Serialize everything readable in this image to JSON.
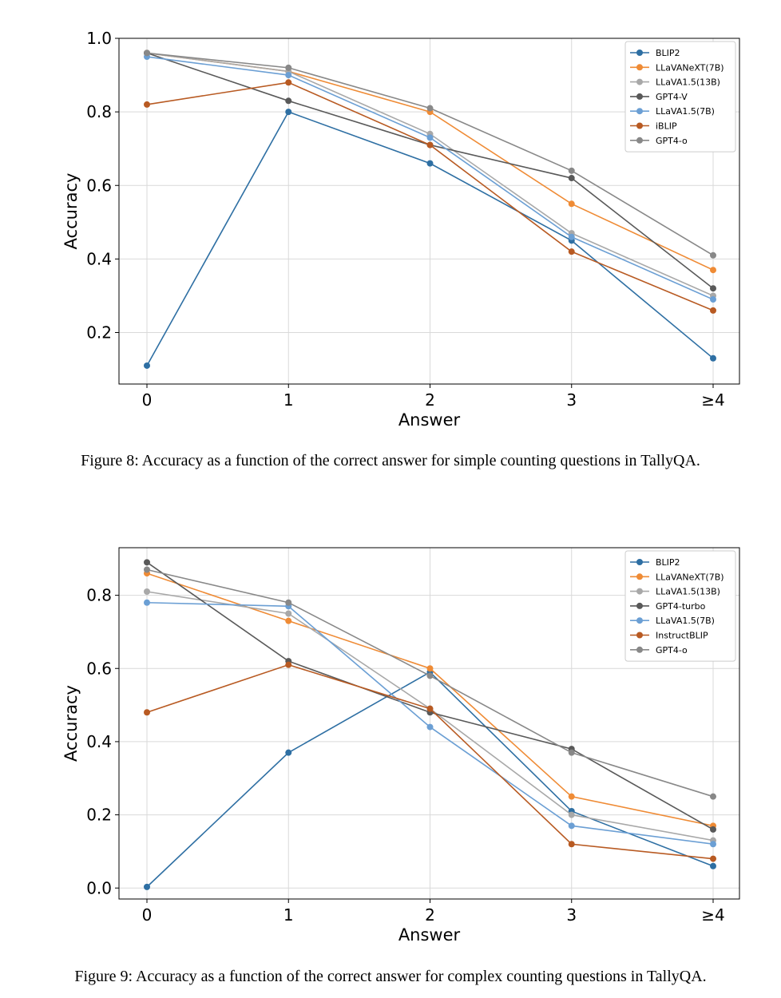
{
  "figures": [
    {
      "caption": "Figure 8: Accuracy as a function of the correct answer for simple counting questions in TallyQA.",
      "chart_data": {
        "type": "line",
        "title": "",
        "xlabel": "Answer",
        "ylabel": "Accuracy",
        "categories": [
          "0",
          "1",
          "2",
          "3",
          "≥4"
        ],
        "ylim": [
          0.06,
          1.0
        ],
        "yticks": [
          "0.2",
          "0.4",
          "0.6",
          "0.8",
          "1.0"
        ],
        "ytick_values": [
          0.2,
          0.4,
          0.6,
          0.8,
          1.0
        ],
        "grid": true,
        "legend": "top-right",
        "series": [
          {
            "name": "BLIP2",
            "color": "#2e6fa3",
            "values": [
              0.11,
              0.8,
              0.66,
              0.45,
              0.13
            ]
          },
          {
            "name": "LLaVANeXT(7B)",
            "color": "#ef8b35",
            "values": [
              0.96,
              0.91,
              0.8,
              0.55,
              0.37
            ]
          },
          {
            "name": "LLaVA1.5(13B)",
            "color": "#a8a8a8",
            "values": [
              0.96,
              0.91,
              0.74,
              0.47,
              0.3
            ]
          },
          {
            "name": "GPT4-V",
            "color": "#595959",
            "values": [
              0.96,
              0.83,
              0.71,
              0.62,
              0.32
            ]
          },
          {
            "name": "LLaVA1.5(7B)",
            "color": "#6b9fd4",
            "values": [
              0.95,
              0.9,
              0.73,
              0.46,
              0.29
            ]
          },
          {
            "name": "iBLIP",
            "color": "#b85a22",
            "values": [
              0.82,
              0.88,
              0.71,
              0.42,
              0.26
            ]
          },
          {
            "name": "GPT4-o",
            "color": "#888888",
            "values": [
              0.96,
              0.92,
              0.81,
              0.64,
              0.41
            ]
          }
        ]
      }
    },
    {
      "caption": "Figure 9: Accuracy as a function of the correct answer for complex counting questions in TallyQA.",
      "chart_data": {
        "type": "line",
        "title": "",
        "xlabel": "Answer",
        "ylabel": "Accuracy",
        "categories": [
          "0",
          "1",
          "2",
          "3",
          "≥4"
        ],
        "ylim": [
          -0.03,
          0.93
        ],
        "yticks": [
          "0.0",
          "0.2",
          "0.4",
          "0.6",
          "0.8"
        ],
        "ytick_values": [
          0.0,
          0.2,
          0.4,
          0.6,
          0.8
        ],
        "grid": true,
        "legend": "top-right",
        "series": [
          {
            "name": "BLIP2",
            "color": "#2e6fa3",
            "values": [
              0.003,
              0.37,
              0.59,
              0.21,
              0.06
            ]
          },
          {
            "name": "LLaVANeXT(7B)",
            "color": "#ef8b35",
            "values": [
              0.86,
              0.73,
              0.6,
              0.25,
              0.17
            ]
          },
          {
            "name": "LLaVA1.5(13B)",
            "color": "#a8a8a8",
            "values": [
              0.81,
              0.75,
              0.49,
              0.2,
              0.13
            ]
          },
          {
            "name": "GPT4-turbo",
            "color": "#595959",
            "values": [
              0.89,
              0.62,
              0.48,
              0.38,
              0.16
            ]
          },
          {
            "name": "LLaVA1.5(7B)",
            "color": "#6b9fd4",
            "values": [
              0.78,
              0.77,
              0.44,
              0.17,
              0.12
            ]
          },
          {
            "name": "InstructBLIP",
            "color": "#b85a22",
            "values": [
              0.48,
              0.61,
              0.49,
              0.12,
              0.08
            ]
          },
          {
            "name": "GPT4-o",
            "color": "#888888",
            "values": [
              0.87,
              0.78,
              0.58,
              0.37,
              0.25
            ]
          }
        ]
      }
    }
  ]
}
